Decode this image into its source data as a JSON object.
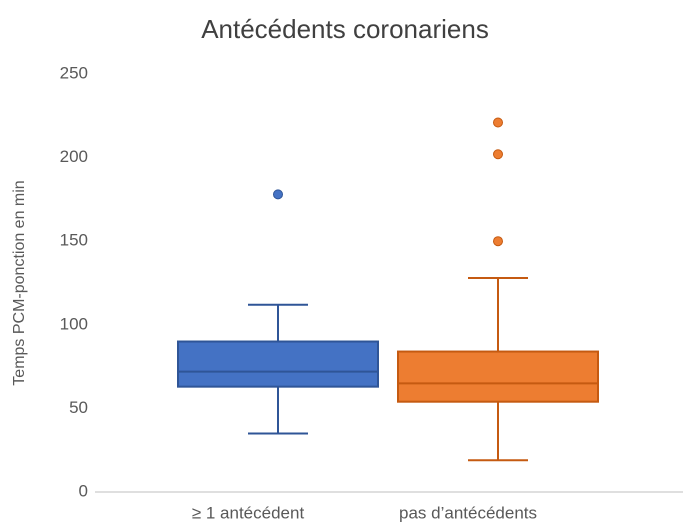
{
  "chart_data": {
    "type": "box",
    "title": "Antécédents coronariens",
    "y_label": "Temps PCM-ponction en min",
    "categories": [
      "≥ 1 antécédent",
      "pas d’antécédents"
    ],
    "boxes": [
      {
        "min": 35,
        "q1": 63,
        "median": 72,
        "q3": 90,
        "max": 112,
        "outliers": [
          178
        ],
        "color": "#4472c4",
        "edge": "#2f5597"
      },
      {
        "min": 19,
        "q1": 54,
        "median": 65,
        "q3": 84,
        "max": 128,
        "outliers": [
          150,
          202,
          221
        ],
        "color": "#ed7d31",
        "edge": "#c55a11"
      }
    ],
    "ylim": [
      0,
      250
    ],
    "yticks": [
      0,
      50,
      100,
      150,
      200,
      250
    ]
  }
}
